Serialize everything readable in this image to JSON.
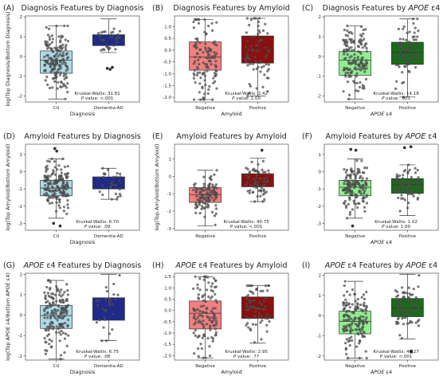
{
  "chart_data": [
    {
      "panel": "(A)",
      "type": "box",
      "title": "Diagnosis Features by Diagnosis",
      "xlabel": "Diagnosis",
      "ylabel": "log(Top Diagnosis/Bottom Diagnosis)",
      "ylim": [
        -2.3,
        2.05
      ],
      "yticks": [
        -2,
        -1,
        0,
        1,
        2
      ],
      "stat_line1": "Kruskal-Wallis: 31.81",
      "stat_line2": "P value: <.001",
      "groups": [
        {
          "label": "CU",
          "color": "#add8e6",
          "q1": -0.85,
          "median": -0.18,
          "q3": 0.28,
          "whisker_low": -2.15,
          "whisker_high": 1.55,
          "n": 170
        },
        {
          "label": "Dementia-AD",
          "color": "#1f2a8c",
          "q1": 0.55,
          "median": 0.8,
          "q3": 1.1,
          "whisker_low": 0.2,
          "whisker_high": 1.9,
          "n": 30,
          "outliers": [
            -0.55,
            -0.65,
            -0.6
          ]
        }
      ]
    },
    {
      "panel": "(B)",
      "type": "box",
      "title": "Diagnosis Features by Amyloid",
      "xlabel": "Amyloid",
      "ylabel": "",
      "ylim": [
        -2.2,
        1.45
      ],
      "yticks": [
        -2.0,
        -1.5,
        -1.0,
        -0.5,
        0.0,
        0.5,
        1.0
      ],
      "stat_line1": "Kruskal-Wallis: 2.42",
      "stat_line2": "P value: 1.00",
      "groups": [
        {
          "label": "Negative",
          "color": "#f08080",
          "q1": -0.85,
          "median": -0.3,
          "q3": 0.35,
          "whisker_low": -2.1,
          "whisker_high": 1.3,
          "n": 120
        },
        {
          "label": "Positive",
          "color": "#8b1010",
          "q1": -0.55,
          "median": 0.0,
          "q3": 0.6,
          "whisker_low": -1.95,
          "whisker_high": 1.35,
          "n": 70
        }
      ]
    },
    {
      "panel": "(C)",
      "type": "box",
      "title": "Diagnosis Features by ",
      "title_italic": "APOE",
      "title_tail": " ε4",
      "xlabel": "",
      "xlabel_italic": "APOE",
      "xlabel_tail": " ε4",
      "ylabel": "",
      "ylim": [
        -2.3,
        2.05
      ],
      "yticks": [
        -2,
        -1,
        0,
        1,
        2
      ],
      "stat_line1": "Kruskal-Wallis: 14.18",
      "stat_line2": "P value: .001",
      "groups": [
        {
          "label": "Negative",
          "color": "#90ee90",
          "q1": -0.95,
          "median": -0.18,
          "q3": 0.25,
          "whisker_low": -2.15,
          "whisker_high": 1.55,
          "n": 150
        },
        {
          "label": "Positive",
          "color": "#1a6b1a",
          "q1": -0.4,
          "median": 0.2,
          "q3": 0.72,
          "whisker_low": -2.05,
          "whisker_high": 1.9,
          "n": 80
        }
      ]
    },
    {
      "panel": "(D)",
      "type": "box",
      "title": "Amyloid Features by Diagnosis",
      "xlabel": "Diagnosis",
      "ylabel": "log(Top Amyloid/Bottom Amyloid)",
      "ylim": [
        -3.4,
        1.6
      ],
      "yticks": [
        -3,
        -2,
        -1,
        0,
        1
      ],
      "stat_line1": "Kruskal-Wallis: 6.70",
      "stat_line2": "P value: .09",
      "groups": [
        {
          "label": "CU",
          "color": "#add8e6",
          "q1": -1.4,
          "median": -0.95,
          "q3": -0.5,
          "whisker_low": -2.7,
          "whisker_high": 0.75,
          "n": 170,
          "outliers": [
            1.35,
            1.2,
            -3.15,
            -3.0
          ]
        },
        {
          "label": "Dementia-AD",
          "color": "#1f2a8c",
          "q1": -1.0,
          "median": -0.7,
          "q3": -0.3,
          "whisker_low": -1.6,
          "whisker_high": 0.2,
          "n": 30
        }
      ]
    },
    {
      "panel": "(E)",
      "type": "box",
      "title": "Amyloid Features by Amyloid",
      "xlabel": "",
      "ylabel": "log(Top Amyloid/Bottom Amyloid)",
      "ylim": [
        -3.1,
        1.85
      ],
      "yticks": [
        -3,
        -2,
        -1,
        0,
        1
      ],
      "stat_line1": "Kruskal-Wallis: 40.75",
      "stat_line2": "P value: <.001",
      "groups": [
        {
          "label": "Negative",
          "color": "#f08080",
          "q1": -1.5,
          "median": -1.05,
          "q3": -0.65,
          "whisker_low": -2.85,
          "whisker_high": 0.35,
          "n": 120
        },
        {
          "label": "Positive",
          "color": "#8b1010",
          "q1": -0.6,
          "median": -0.3,
          "q3": 0.15,
          "whisker_low": -1.45,
          "whisker_high": 1.05,
          "n": 70,
          "outliers": [
            1.5
          ]
        }
      ]
    },
    {
      "panel": "(F)",
      "type": "box",
      "title": "Amyloid Features by ",
      "title_italic": "APOE",
      "title_tail": " ε4",
      "xlabel": "",
      "xlabel_italic": "APOE",
      "xlabel_tail": " ε4",
      "ylabel": "",
      "ylim": [
        -3.4,
        1.6
      ],
      "yticks": [
        -3,
        -2,
        -1,
        0,
        1
      ],
      "stat_line1": "Kruskal-Wallis: 1.02",
      "stat_line2": "P value: 1.00",
      "groups": [
        {
          "label": "Negative",
          "color": "#90ee90",
          "q1": -1.4,
          "median": -0.9,
          "q3": -0.5,
          "whisker_low": -2.7,
          "whisker_high": 0.75,
          "n": 150,
          "outliers": [
            1.3,
            1.25,
            -3.15
          ]
        },
        {
          "label": "Positive",
          "color": "#1a6b1a",
          "q1": -1.25,
          "median": -0.75,
          "q3": -0.4,
          "whisker_low": -2.55,
          "whisker_high": 0.4,
          "n": 80,
          "outliers": [
            1.45,
            1.4
          ]
        }
      ]
    },
    {
      "panel": "(G)",
      "type": "box",
      "title": " Features by Diagnosis",
      "title_lead_italic": "APOE",
      "title_lead_tail": " ε4",
      "xlabel": "Diagnosis",
      "ylabel": "log(Top APOE ε4/Bottom APOE ε4)",
      "ylim": [
        -2.2,
        2.05
      ],
      "yticks": [
        -2,
        -1,
        0,
        1,
        2
      ],
      "stat_line1": "Kruskal-Wallis: 6.75",
      "stat_line2": "P value: .08",
      "groups": [
        {
          "label": "CU",
          "color": "#add8e6",
          "q1": -0.65,
          "median": -0.02,
          "q3": 0.48,
          "whisker_low": -2.15,
          "whisker_high": 1.7,
          "n": 170
        },
        {
          "label": "Dementia-AD",
          "color": "#1f2a8c",
          "q1": -0.25,
          "median": 0.3,
          "q3": 0.85,
          "whisker_low": -1.25,
          "whisker_high": 2.0,
          "n": 30
        }
      ]
    },
    {
      "panel": "(H)",
      "type": "box",
      "title": " Features by Amyloid",
      "title_lead_italic": "APOE",
      "title_lead_tail": " ε4",
      "xlabel": "Amyloid",
      "ylabel": "",
      "ylim": [
        -2.2,
        1.65
      ],
      "yticks": [
        -2.0,
        -1.5,
        -1.0,
        -0.5,
        0.0,
        0.5,
        1.0,
        1.5
      ],
      "stat_line1": "Kruskal-Wallis: 2.95",
      "stat_line2": "P value: .77",
      "groups": [
        {
          "label": "Negative",
          "color": "#f08080",
          "q1": -0.82,
          "median": -0.12,
          "q3": 0.42,
          "whisker_low": -2.1,
          "whisker_high": 1.5,
          "n": 120
        },
        {
          "label": "Positive",
          "color": "#8b1010",
          "q1": -0.35,
          "median": 0.18,
          "q3": 0.6,
          "whisker_low": -1.45,
          "whisker_high": 1.1,
          "n": 70
        }
      ]
    },
    {
      "panel": "(I)",
      "type": "box",
      "title": " Features by ",
      "title_lead_italic": "APOE",
      "title_lead_tail": " ε4",
      "title_italic": "APOE",
      "title_tail": " ε4",
      "xlabel": "",
      "xlabel_italic": "APOE",
      "xlabel_tail": " ε4",
      "ylabel": "",
      "ylim": [
        -2.2,
        2.1
      ],
      "yticks": [
        -2,
        -1,
        0,
        1,
        2
      ],
      "stat_line1": "Kruskal-Wallis: 40.27",
      "stat_line2": "P value: <.001",
      "groups": [
        {
          "label": "Negative",
          "color": "#90ee90",
          "q1": -0.9,
          "median": -0.28,
          "q3": 0.22,
          "whisker_low": -2.1,
          "whisker_high": 1.7,
          "n": 150
        },
        {
          "label": "Positive",
          "color": "#1a6b1a",
          "q1": -0.05,
          "median": 0.38,
          "q3": 0.85,
          "whisker_low": -1.15,
          "whisker_high": 2.05,
          "n": 80,
          "outliers": [
            -1.75,
            -1.8
          ]
        }
      ]
    }
  ]
}
